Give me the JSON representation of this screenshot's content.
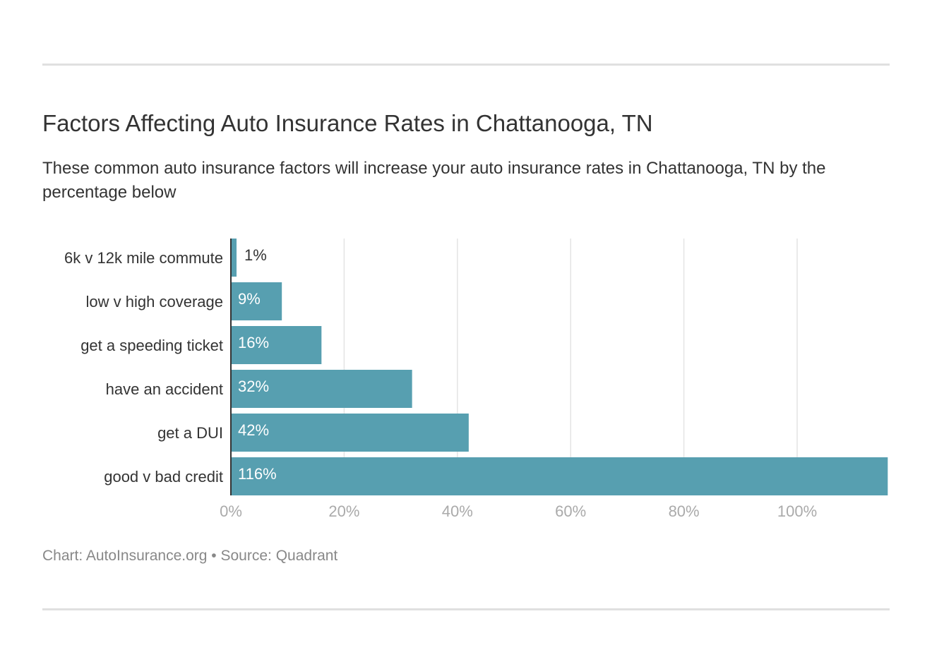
{
  "title": "Factors Affecting Auto Insurance Rates in Chattanooga, TN",
  "subtitle": "These common auto insurance factors will increase your auto insurance rates in Chattanooga, TN by the percentage below",
  "footer": "Chart: AutoInsurance.org • Source: Quadrant",
  "colors": {
    "bar": "#579fb0",
    "grid": "#e4e4e4",
    "axis": "#333333"
  },
  "chart_data": {
    "type": "bar",
    "orientation": "horizontal",
    "categories": [
      "6k v 12k mile commute",
      "low v high coverage",
      "get a speeding ticket",
      "have an accident",
      "get a DUI",
      "good v bad credit"
    ],
    "values": [
      1,
      9,
      16,
      32,
      42,
      116
    ],
    "data_labels": [
      "1%",
      "9%",
      "16%",
      "32%",
      "42%",
      "116%"
    ],
    "xticks": [
      0,
      20,
      40,
      60,
      80,
      100
    ],
    "xtick_labels": [
      "0%",
      "20%",
      "40%",
      "60%",
      "80%",
      "100%"
    ],
    "xlim": [
      0,
      116
    ],
    "grid": true
  }
}
